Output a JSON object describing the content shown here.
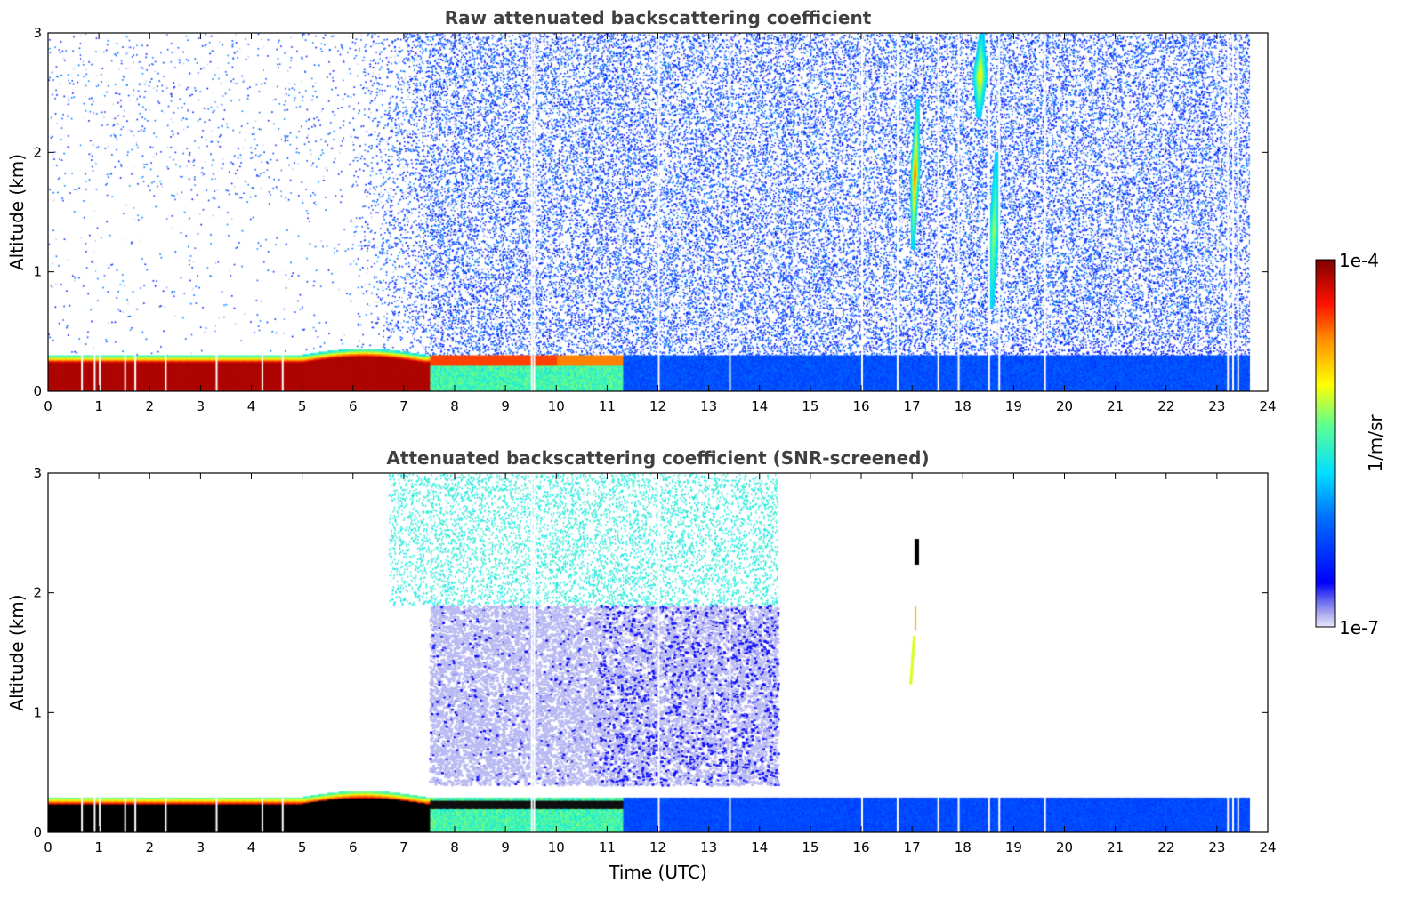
{
  "chart_data": [
    {
      "type": "heatmap",
      "title": "Raw attenuated backscattering coefficient",
      "xlabel": "",
      "ylabel": "Altitude (km)",
      "xlim": [
        0,
        24
      ],
      "ylim": [
        0,
        3
      ],
      "xticks": [
        "0",
        "1",
        "2",
        "3",
        "4",
        "5",
        "6",
        "7",
        "8",
        "9",
        "10",
        "11",
        "12",
        "13",
        "14",
        "15",
        "16",
        "17",
        "18",
        "19",
        "20",
        "21",
        "22",
        "23",
        "24"
      ],
      "yticks": [
        "0",
        "1",
        "2",
        "3"
      ],
      "data_end_hour": 23.65,
      "features": [
        {
          "kind": "boundary-layer",
          "t_start": 0,
          "t_end": 7.5,
          "top_km": 0.3,
          "level": "high"
        },
        {
          "kind": "boundary-layer",
          "t_start": 7.5,
          "t_end": 11.3,
          "top_km": 0.3,
          "level": "medium"
        },
        {
          "kind": "boundary-layer",
          "t_start": 11.3,
          "t_end": 23.65,
          "top_km": 0.3,
          "level": "low"
        },
        {
          "kind": "cloud",
          "t_center": 17.0,
          "alt_bottom_km": 1.2,
          "alt_top_km": 2.45
        },
        {
          "kind": "cloud",
          "t_center": 18.3,
          "alt_bottom_km": 2.3,
          "alt_top_km": 3.0
        },
        {
          "kind": "cloud",
          "t_center": 18.55,
          "alt_bottom_km": 0.7,
          "alt_top_km": 2.0
        }
      ]
    },
    {
      "type": "heatmap",
      "title": "Attenuated backscattering coefficient (SNR-screened)",
      "xlabel": "Time (UTC)",
      "ylabel": "Altitude (km)",
      "xlim": [
        0,
        24
      ],
      "ylim": [
        0,
        3
      ],
      "xticks": [
        "0",
        "1",
        "2",
        "3",
        "4",
        "5",
        "6",
        "7",
        "8",
        "9",
        "10",
        "11",
        "12",
        "13",
        "14",
        "15",
        "16",
        "17",
        "18",
        "19",
        "20",
        "21",
        "22",
        "23",
        "24"
      ],
      "yticks": [
        "0",
        "1",
        "2",
        "3"
      ],
      "data_end_hour": 23.65,
      "screen_cutoff_hour": 14.35
    }
  ],
  "colorbar": {
    "label": "1/m/sr",
    "max_label": "1e-4",
    "min_label": "1e-7",
    "scale": "log",
    "colormap": "jet"
  }
}
